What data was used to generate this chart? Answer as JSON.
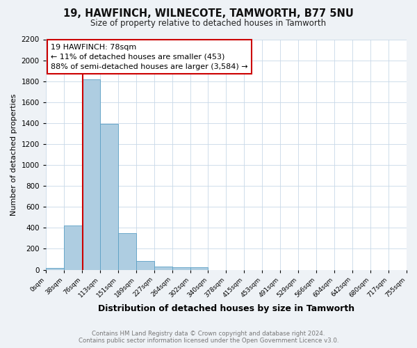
{
  "title": "19, HAWFINCH, WILNECOTE, TAMWORTH, B77 5NU",
  "subtitle": "Size of property relative to detached houses in Tamworth",
  "xlabel": "Distribution of detached houses by size in Tamworth",
  "ylabel": "Number of detached properties",
  "bins": [
    "0sqm",
    "38sqm",
    "76sqm",
    "113sqm",
    "151sqm",
    "189sqm",
    "227sqm",
    "264sqm",
    "302sqm",
    "340sqm",
    "378sqm",
    "415sqm",
    "453sqm",
    "491sqm",
    "529sqm",
    "566sqm",
    "604sqm",
    "642sqm",
    "680sqm",
    "717sqm",
    "755sqm"
  ],
  "values": [
    15,
    420,
    1820,
    1390,
    350,
    85,
    30,
    25,
    25,
    0,
    0,
    0,
    0,
    0,
    0,
    0,
    0,
    0,
    0,
    0
  ],
  "bar_color": "#aecde1",
  "bar_edge_color": "#5a9fc4",
  "property_line_color": "#cc0000",
  "annotation_text": "19 HAWFINCH: 78sqm\n← 11% of detached houses are smaller (453)\n88% of semi-detached houses are larger (3,584) →",
  "annotation_box_color": "#ffffff",
  "annotation_box_edge": "#cc0000",
  "ylim": [
    0,
    2200
  ],
  "yticks": [
    0,
    200,
    400,
    600,
    800,
    1000,
    1200,
    1400,
    1600,
    1800,
    2000,
    2200
  ],
  "footer_line1": "Contains HM Land Registry data © Crown copyright and database right 2024.",
  "footer_line2": "Contains public sector information licensed under the Open Government Licence v3.0.",
  "bg_color": "#eef2f6",
  "plot_bg_color": "#ffffff",
  "grid_color": "#c8d8e8"
}
